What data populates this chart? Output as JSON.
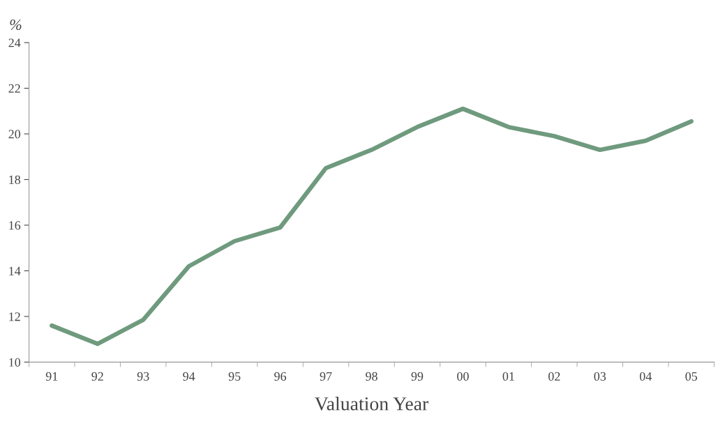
{
  "chart_data": {
    "type": "line",
    "xlabel": "Valuation Year",
    "ylabel": "%",
    "categories": [
      "91",
      "92",
      "93",
      "94",
      "95",
      "96",
      "97",
      "98",
      "99",
      "00",
      "01",
      "02",
      "03",
      "04",
      "05"
    ],
    "series": [
      {
        "color": "#6f9a7e",
        "values": [
          11.6,
          10.8,
          11.85,
          14.2,
          15.3,
          15.9,
          18.5,
          19.3,
          20.3,
          21.1,
          20.3,
          19.9,
          19.3,
          19.7,
          20.55
        ]
      }
    ],
    "ylim": [
      10,
      24
    ],
    "yticks": [
      10,
      12,
      14,
      16,
      18,
      20,
      22,
      24
    ],
    "grid": false,
    "marker": "none",
    "line_style": "solid"
  }
}
